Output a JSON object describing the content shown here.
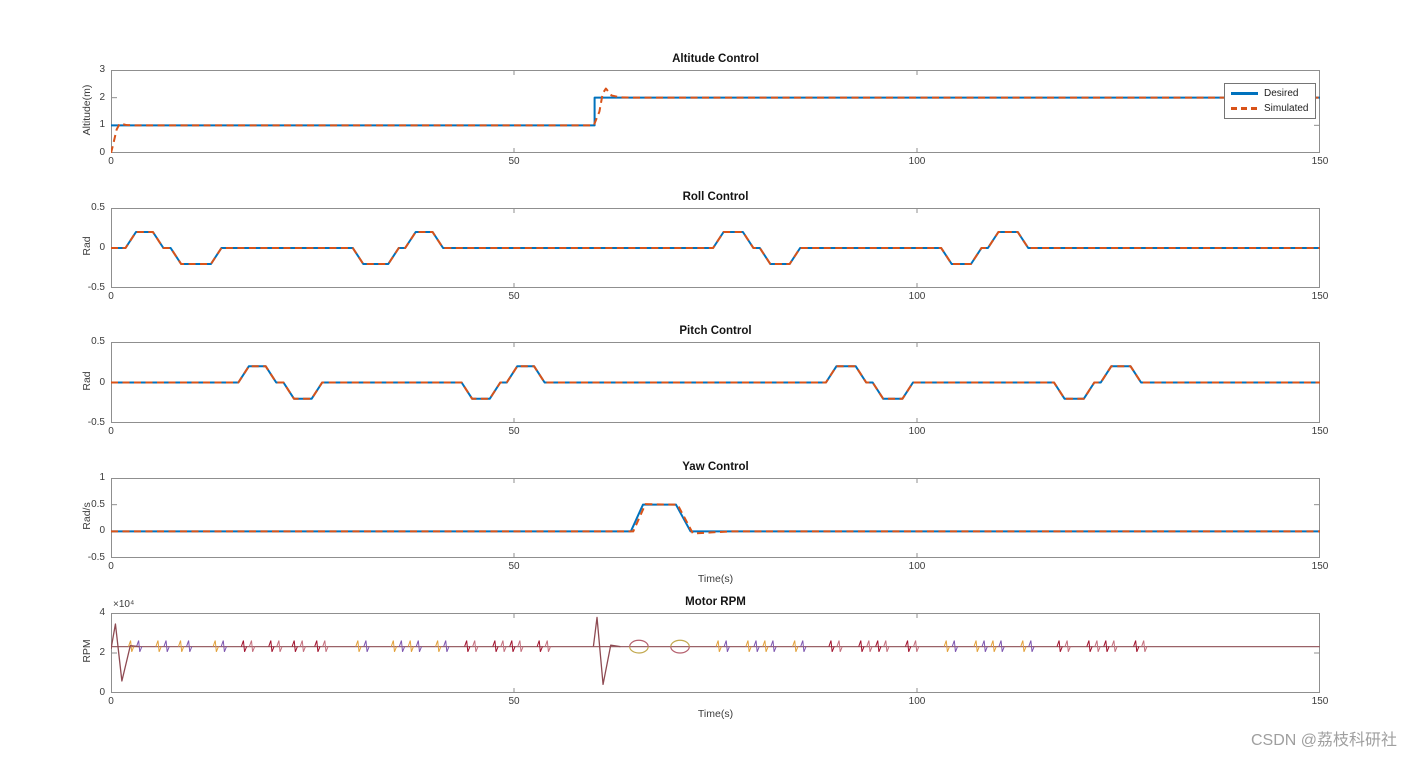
{
  "page": {
    "background": "#ffffff",
    "watermark": "CSDN @荔枝科研社"
  },
  "legend": {
    "position": "top-right-of-altitude-plot",
    "entries": [
      {
        "label": "Desired",
        "color": "#0072BD",
        "style": "solid"
      },
      {
        "label": "Simulated",
        "color": "#D95319",
        "style": "dashed"
      }
    ]
  },
  "chart_data": [
    {
      "type": "line",
      "title": "Altitude Control",
      "ylabel": "Altitude(m)",
      "xlabel": "",
      "xlim": [
        0,
        150
      ],
      "ylim": [
        0,
        3
      ],
      "xticks": [
        0,
        50,
        100,
        150
      ],
      "xtick_labels": [
        "0",
        "50",
        "100",
        "150"
      ],
      "yticks": [
        0,
        1,
        2,
        3
      ],
      "ytick_labels": [
        "0",
        "1",
        "2",
        "3"
      ],
      "grid": false,
      "series": [
        {
          "name": "Desired",
          "color": "#0072BD",
          "style": "solid",
          "points": [
            [
              0,
              1
            ],
            [
              60,
              1
            ],
            [
              60,
              2
            ],
            [
              150,
              2
            ]
          ]
        },
        {
          "name": "Simulated",
          "color": "#D95319",
          "style": "dashed",
          "points": [
            [
              0,
              0
            ],
            [
              0.3,
              0.35
            ],
            [
              0.7,
              0.85
            ],
            [
              1.1,
              1.07
            ],
            [
              1.9,
              1.01
            ],
            [
              3,
              1
            ],
            [
              59.9,
              1
            ],
            [
              60.6,
              1.5
            ],
            [
              61.0,
              2.15
            ],
            [
              61.4,
              2.33
            ],
            [
              62.1,
              2.08
            ],
            [
              63.2,
              2.01
            ],
            [
              65,
              2
            ],
            [
              150,
              2
            ]
          ]
        }
      ]
    },
    {
      "type": "line",
      "title": "Roll Control",
      "ylabel": "Rad",
      "xlabel": "",
      "xlim": [
        0,
        150
      ],
      "ylim": [
        -0.5,
        0.5
      ],
      "xticks": [
        0,
        50,
        100,
        150
      ],
      "xtick_labels": [
        "0",
        "50",
        "100",
        "150"
      ],
      "yticks": [
        -0.5,
        0,
        0.5
      ],
      "ytick_labels": [
        "-0.5",
        "0",
        "0.5"
      ],
      "grid": false,
      "series": [
        {
          "name": "Desired",
          "color": "#0072BD",
          "style": "solid",
          "points": [
            [
              0,
              0
            ],
            [
              1.8,
              0
            ],
            [
              3.1,
              0.2
            ],
            [
              5.2,
              0.2
            ],
            [
              6.5,
              0
            ],
            [
              7.4,
              0
            ],
            [
              8.7,
              -0.2
            ],
            [
              12.4,
              -0.2
            ],
            [
              13.7,
              0
            ],
            [
              30,
              0
            ],
            [
              31.3,
              -0.2
            ],
            [
              34.4,
              -0.2
            ],
            [
              35.7,
              0
            ],
            [
              36.5,
              0
            ],
            [
              37.8,
              0.2
            ],
            [
              39.9,
              0.2
            ],
            [
              41.2,
              0
            ],
            [
              74.7,
              0
            ],
            [
              76,
              0.2
            ],
            [
              78.4,
              0.2
            ],
            [
              79.7,
              0
            ],
            [
              80.5,
              0
            ],
            [
              81.8,
              -0.2
            ],
            [
              84.2,
              -0.2
            ],
            [
              85.5,
              0
            ],
            [
              103,
              0
            ],
            [
              104.3,
              -0.2
            ],
            [
              106.7,
              -0.2
            ],
            [
              108,
              0
            ],
            [
              108.8,
              0
            ],
            [
              110.1,
              0.2
            ],
            [
              112.5,
              0.2
            ],
            [
              113.8,
              0
            ],
            [
              150,
              0
            ]
          ]
        },
        {
          "name": "Simulated",
          "color": "#D95319",
          "style": "dashed",
          "points": [
            [
              0,
              0
            ],
            [
              1.8,
              0
            ],
            [
              3.1,
              0.2
            ],
            [
              5.2,
              0.2
            ],
            [
              6.5,
              0
            ],
            [
              7.4,
              0
            ],
            [
              8.7,
              -0.2
            ],
            [
              12.4,
              -0.2
            ],
            [
              13.7,
              0
            ],
            [
              30,
              0
            ],
            [
              31.3,
              -0.2
            ],
            [
              34.4,
              -0.2
            ],
            [
              35.7,
              0
            ],
            [
              36.5,
              0
            ],
            [
              37.8,
              0.2
            ],
            [
              39.9,
              0.2
            ],
            [
              41.2,
              0
            ],
            [
              74.7,
              0
            ],
            [
              76,
              0.2
            ],
            [
              78.4,
              0.2
            ],
            [
              79.7,
              0
            ],
            [
              80.5,
              0
            ],
            [
              81.8,
              -0.2
            ],
            [
              84.2,
              -0.2
            ],
            [
              85.5,
              0
            ],
            [
              103,
              0
            ],
            [
              104.3,
              -0.2
            ],
            [
              106.7,
              -0.2
            ],
            [
              108,
              0
            ],
            [
              108.8,
              0
            ],
            [
              110.1,
              0.2
            ],
            [
              112.5,
              0.2
            ],
            [
              113.8,
              0
            ],
            [
              150,
              0
            ]
          ]
        }
      ]
    },
    {
      "type": "line",
      "title": "Pitch Control",
      "ylabel": "Rad",
      "xlabel": "",
      "xlim": [
        0,
        150
      ],
      "ylim": [
        -0.5,
        0.5
      ],
      "xticks": [
        0,
        50,
        100,
        150
      ],
      "xtick_labels": [
        "0",
        "50",
        "100",
        "150"
      ],
      "yticks": [
        -0.5,
        0,
        0.5
      ],
      "ytick_labels": [
        "-0.5",
        "0",
        "0.5"
      ],
      "grid": false,
      "series": [
        {
          "name": "Desired",
          "color": "#0072BD",
          "style": "solid",
          "points": [
            [
              0,
              0
            ],
            [
              15.8,
              0
            ],
            [
              17.1,
              0.2
            ],
            [
              19.2,
              0.2
            ],
            [
              20.5,
              0
            ],
            [
              21.4,
              0
            ],
            [
              22.7,
              -0.2
            ],
            [
              24.9,
              -0.2
            ],
            [
              26.2,
              0
            ],
            [
              43.5,
              0
            ],
            [
              44.8,
              -0.2
            ],
            [
              47,
              -0.2
            ],
            [
              48.3,
              0
            ],
            [
              49.1,
              0
            ],
            [
              50.4,
              0.2
            ],
            [
              52.5,
              0.2
            ],
            [
              53.8,
              0
            ],
            [
              88.7,
              0
            ],
            [
              90,
              0.2
            ],
            [
              92.4,
              0.2
            ],
            [
              93.7,
              0
            ],
            [
              94.5,
              0
            ],
            [
              95.8,
              -0.2
            ],
            [
              98.2,
              -0.2
            ],
            [
              99.5,
              0
            ],
            [
              117,
              0
            ],
            [
              118.3,
              -0.2
            ],
            [
              120.7,
              -0.2
            ],
            [
              122,
              0
            ],
            [
              122.8,
              0
            ],
            [
              124.1,
              0.2
            ],
            [
              126.5,
              0.2
            ],
            [
              127.8,
              0
            ],
            [
              150,
              0
            ]
          ]
        },
        {
          "name": "Simulated",
          "color": "#D95319",
          "style": "dashed",
          "points": [
            [
              0,
              0
            ],
            [
              15.8,
              0
            ],
            [
              17.1,
              0.2
            ],
            [
              19.2,
              0.2
            ],
            [
              20.5,
              0
            ],
            [
              21.4,
              0
            ],
            [
              22.7,
              -0.2
            ],
            [
              24.9,
              -0.2
            ],
            [
              26.2,
              0
            ],
            [
              43.5,
              0
            ],
            [
              44.8,
              -0.2
            ],
            [
              47,
              -0.2
            ],
            [
              48.3,
              0
            ],
            [
              49.1,
              0
            ],
            [
              50.4,
              0.2
            ],
            [
              52.5,
              0.2
            ],
            [
              53.8,
              0
            ],
            [
              88.7,
              0
            ],
            [
              90,
              0.2
            ],
            [
              92.4,
              0.2
            ],
            [
              93.7,
              0
            ],
            [
              94.5,
              0
            ],
            [
              95.8,
              -0.2
            ],
            [
              98.2,
              -0.2
            ],
            [
              99.5,
              0
            ],
            [
              117,
              0
            ],
            [
              118.3,
              -0.2
            ],
            [
              120.7,
              -0.2
            ],
            [
              122,
              0
            ],
            [
              122.8,
              0
            ],
            [
              124.1,
              0.2
            ],
            [
              126.5,
              0.2
            ],
            [
              127.8,
              0
            ],
            [
              150,
              0
            ]
          ]
        }
      ]
    },
    {
      "type": "line",
      "title": "Yaw Control",
      "ylabel": "Rad/s",
      "xlabel": "Time(s)",
      "xlim": [
        0,
        150
      ],
      "ylim": [
        -0.5,
        1
      ],
      "xticks": [
        0,
        50,
        100,
        150
      ],
      "xtick_labels": [
        "0",
        "50",
        "100",
        "150"
      ],
      "yticks": [
        -0.5,
        0,
        0.5,
        1
      ],
      "ytick_labels": [
        "-0.5",
        "0",
        "0.5",
        "1"
      ],
      "grid": false,
      "series": [
        {
          "name": "Desired",
          "color": "#0072BD",
          "style": "solid",
          "points": [
            [
              0,
              0
            ],
            [
              64.5,
              0
            ],
            [
              66,
              0.5
            ],
            [
              70.1,
              0.5
            ],
            [
              71.9,
              0
            ],
            [
              150,
              0
            ]
          ]
        },
        {
          "name": "Simulated",
          "color": "#D95319",
          "style": "dashed",
          "points": [
            [
              0,
              0
            ],
            [
              64.8,
              0
            ],
            [
              66.3,
              0.51
            ],
            [
              70.3,
              0.5
            ],
            [
              72.2,
              -0.04
            ],
            [
              74.5,
              -0.02
            ],
            [
              77,
              0
            ],
            [
              150,
              0
            ]
          ]
        }
      ]
    },
    {
      "type": "line",
      "title": "Motor RPM",
      "ylabel": "RPM",
      "xlabel": "Time(s)",
      "y_multiplier": "×10⁴",
      "xlim": [
        0,
        150
      ],
      "ylim": [
        0,
        40000
      ],
      "xticks": [
        0,
        50,
        100,
        150
      ],
      "xtick_labels": [
        "0",
        "50",
        "100",
        "150"
      ],
      "yticks": [
        0,
        20000,
        40000
      ],
      "ytick_labels": [
        "0",
        "2",
        "4"
      ],
      "grid": false,
      "motor": {
        "baseline": 23200,
        "baseline_color": "#9A6268",
        "transient_color": "#8E4A52",
        "transients": [
          [
            [
              0,
              22000
            ],
            [
              0.55,
              34500
            ],
            [
              1.35,
              6000
            ],
            [
              2.4,
              23700
            ],
            [
              3.5,
              23200
            ]
          ],
          [
            [
              59.85,
              23200
            ],
            [
              60.3,
              37800
            ],
            [
              61.05,
              4300
            ],
            [
              62.0,
              23900
            ],
            [
              63.2,
              23200
            ]
          ]
        ],
        "roll_ramp_times": [
          2.5,
          5.9,
          8.7,
          13.0,
          30.7,
          35.1,
          37.2,
          40.6,
          75.4,
          79.1,
          81.2,
          84.9,
          103.7,
          107.4,
          109.5,
          113.2
        ],
        "pitch_ramp_times": [
          16.5,
          19.9,
          22.8,
          25.6,
          44.2,
          47.7,
          49.8,
          53.2,
          89.4,
          93.1,
          95.2,
          98.9,
          117.7,
          121.4,
          123.5,
          127.2
        ],
        "roll_spike_colors": [
          "#E3A23C",
          "#7E57B0"
        ],
        "pitch_spike_colors": [
          "#A2142F",
          "#C4707E"
        ],
        "spike_amp_up": 3000,
        "spike_amp_down": 2600,
        "spike_half_width": 0.33,
        "spike_pair_offset": 1.0,
        "ovals": [
          {
            "t": 65.5,
            "rx": 1.15,
            "ry": 3200,
            "top_color": "#B5606E",
            "bottom_color": "#C2A94F"
          },
          {
            "t": 70.6,
            "rx": 1.15,
            "ry": 3200,
            "top_color": "#C2A94F",
            "bottom_color": "#B5606E"
          }
        ]
      }
    }
  ]
}
